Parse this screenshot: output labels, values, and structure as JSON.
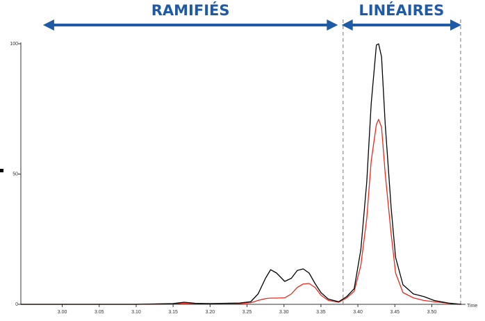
{
  "chart_data": {
    "type": "line",
    "xlabel": "Time",
    "x": [
      2.944,
      3.0,
      3.05,
      3.1,
      3.15,
      3.165,
      3.18,
      3.2,
      3.24,
      3.255,
      3.265,
      3.275,
      3.282,
      3.29,
      3.301,
      3.31,
      3.318,
      3.326,
      3.334,
      3.342,
      3.35,
      3.36,
      3.374,
      3.385,
      3.395,
      3.404,
      3.412,
      3.418,
      3.425,
      3.428,
      3.432,
      3.437,
      3.445,
      3.451,
      3.461,
      3.475,
      3.489,
      3.503,
      3.522,
      3.54
    ],
    "series": [
      {
        "color": "#000000",
        "values": [
          0,
          0,
          0,
          0,
          0.3,
          0.8,
          0.4,
          0.3,
          0.5,
          1,
          4,
          10,
          13.3,
          12,
          8.8,
          10,
          13,
          13.6,
          12,
          8,
          4.5,
          2,
          1,
          3,
          6,
          21,
          47,
          77,
          99.5,
          100,
          95,
          69,
          37,
          18,
          7.5,
          4,
          3,
          1.5,
          0.5,
          0
        ]
      },
      {
        "color": "#e8291c",
        "values": [
          0,
          0,
          0,
          0,
          0.2,
          0.4,
          0.3,
          0.2,
          0.3,
          0.6,
          1.5,
          2.2,
          2.4,
          2.4,
          2.5,
          4,
          6.5,
          7.8,
          8,
          6.5,
          3.5,
          1.5,
          0.8,
          2.5,
          5,
          15,
          33,
          55,
          69,
          71,
          68,
          50,
          27,
          12,
          4.5,
          2.5,
          1.5,
          1,
          0.4,
          0
        ]
      }
    ],
    "xlim": [
      2.944,
      3.54
    ],
    "ylim": [
      0,
      100
    ],
    "xticks": [
      {
        "value": 3,
        "label": "3.00"
      },
      3.05,
      {
        "value": 3.1,
        "label": "3.10"
      },
      3.15,
      {
        "value": 3.2,
        "label": "3.20"
      },
      3.25,
      {
        "value": 3.3,
        "label": "3.30"
      },
      3.35,
      {
        "value": 3.4,
        "label": "3.40"
      },
      3.45,
      {
        "value": 3.5,
        "label": "3.50"
      }
    ],
    "yticks": [
      0,
      50,
      100
    ],
    "vlines": [
      3.38,
      3.539
    ],
    "annotations": [
      {
        "text": "RAMIFIÉS",
        "x": [
          2.974,
          3.373
        ],
        "color": "#1f5aa6"
      },
      {
        "text": "LINÉAIRES",
        "x": [
          3.378,
          3.54
        ],
        "color": "#1f5aa6"
      }
    ]
  }
}
